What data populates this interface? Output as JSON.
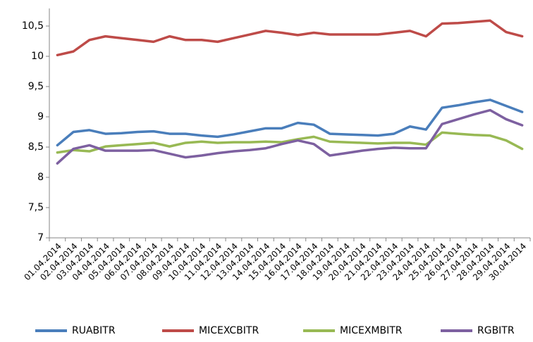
{
  "chart_data": {
    "type": "line",
    "categories": [
      "01.04.2014",
      "02.04.2014",
      "03.04.2014",
      "04.04.2014",
      "05.04.2014",
      "06.04.2014",
      "07.04.2014",
      "08.04.2014",
      "09.04.2014",
      "10.04.2014",
      "11.04.2014",
      "12.04.2014",
      "13.04.2014",
      "14.04.2014",
      "15.04.2014",
      "16.04.2014",
      "17.04.2014",
      "18.04.2014",
      "19.04.2014",
      "20.04.2014",
      "21.04.2014",
      "22.04.2014",
      "23.04.2014",
      "24.04.2014",
      "25.04.2014",
      "26.04.2014",
      "27.04.2014",
      "28.04.2014",
      "29.04.2014",
      "30.04.2014"
    ],
    "series": [
      {
        "name": "RUABITR",
        "color": "#4a7ebb",
        "values": [
          8.53,
          8.75,
          8.78,
          8.72,
          8.73,
          8.75,
          8.76,
          8.72,
          8.72,
          8.69,
          8.67,
          8.71,
          8.76,
          8.81,
          8.81,
          8.9,
          8.87,
          8.72,
          8.71,
          8.7,
          8.69,
          8.72,
          8.84,
          8.79,
          9.15,
          9.19,
          9.24,
          9.28,
          9.18,
          9.08
        ]
      },
      {
        "name": "MICEXCBITR",
        "color": "#be4b48",
        "values": [
          10.02,
          10.08,
          10.27,
          10.33,
          10.3,
          10.27,
          10.24,
          10.33,
          10.27,
          10.27,
          10.24,
          10.3,
          10.36,
          10.42,
          10.39,
          10.35,
          10.39,
          10.36,
          10.36,
          10.36,
          10.36,
          10.39,
          10.42,
          10.33,
          10.54,
          10.55,
          10.57,
          10.59,
          10.4,
          10.33
        ]
      },
      {
        "name": "MICEXMBITR",
        "color": "#98b954",
        "values": [
          8.41,
          8.45,
          8.43,
          8.51,
          8.53,
          8.55,
          8.57,
          8.51,
          8.57,
          8.59,
          8.57,
          8.58,
          8.58,
          8.59,
          8.58,
          8.63,
          8.67,
          8.59,
          8.58,
          8.57,
          8.56,
          8.57,
          8.57,
          8.54,
          8.74,
          8.72,
          8.7,
          8.69,
          8.61,
          8.47
        ]
      },
      {
        "name": "RGBITR",
        "color": "#7d60a0",
        "values": [
          8.23,
          8.47,
          8.53,
          8.44,
          8.44,
          8.44,
          8.45,
          8.39,
          8.33,
          8.36,
          8.4,
          8.43,
          8.45,
          8.48,
          8.55,
          8.61,
          8.55,
          8.36,
          8.4,
          8.44,
          8.47,
          8.49,
          8.48,
          8.48,
          8.88,
          8.96,
          9.04,
          9.11,
          8.96,
          8.86
        ]
      }
    ],
    "ylim": [
      7,
      10.5
    ],
    "yticks": [
      7,
      {
        "value": 7.5,
        "label": "7,5"
      },
      8,
      {
        "value": 8.5,
        "label": "8,5"
      },
      9,
      {
        "value": 9.5,
        "label": "9,5"
      },
      10,
      {
        "value": 10.5,
        "label": "10,5"
      }
    ],
    "grid": false,
    "legend": "bottom"
  }
}
